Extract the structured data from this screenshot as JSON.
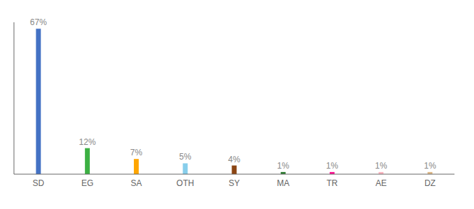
{
  "chart_data": {
    "type": "bar",
    "categories": [
      "SD",
      "EG",
      "SA",
      "OTH",
      "SY",
      "MA",
      "TR",
      "AE",
      "DZ"
    ],
    "values": [
      67,
      12,
      7,
      5,
      4,
      1,
      1,
      1,
      1
    ],
    "value_labels": [
      "67%",
      "12%",
      "7%",
      "5%",
      "4%",
      "1%",
      "1%",
      "1%",
      "1%"
    ],
    "colors": [
      "#4472C4",
      "#3CB043",
      "#FFA500",
      "#87CEEB",
      "#8B4513",
      "#2E7D32",
      "#FF1493",
      "#FFB6C1",
      "#DEB887"
    ],
    "ylim": [
      0,
      70
    ],
    "grid": false,
    "data_labels": true,
    "tick_labels": "x"
  }
}
